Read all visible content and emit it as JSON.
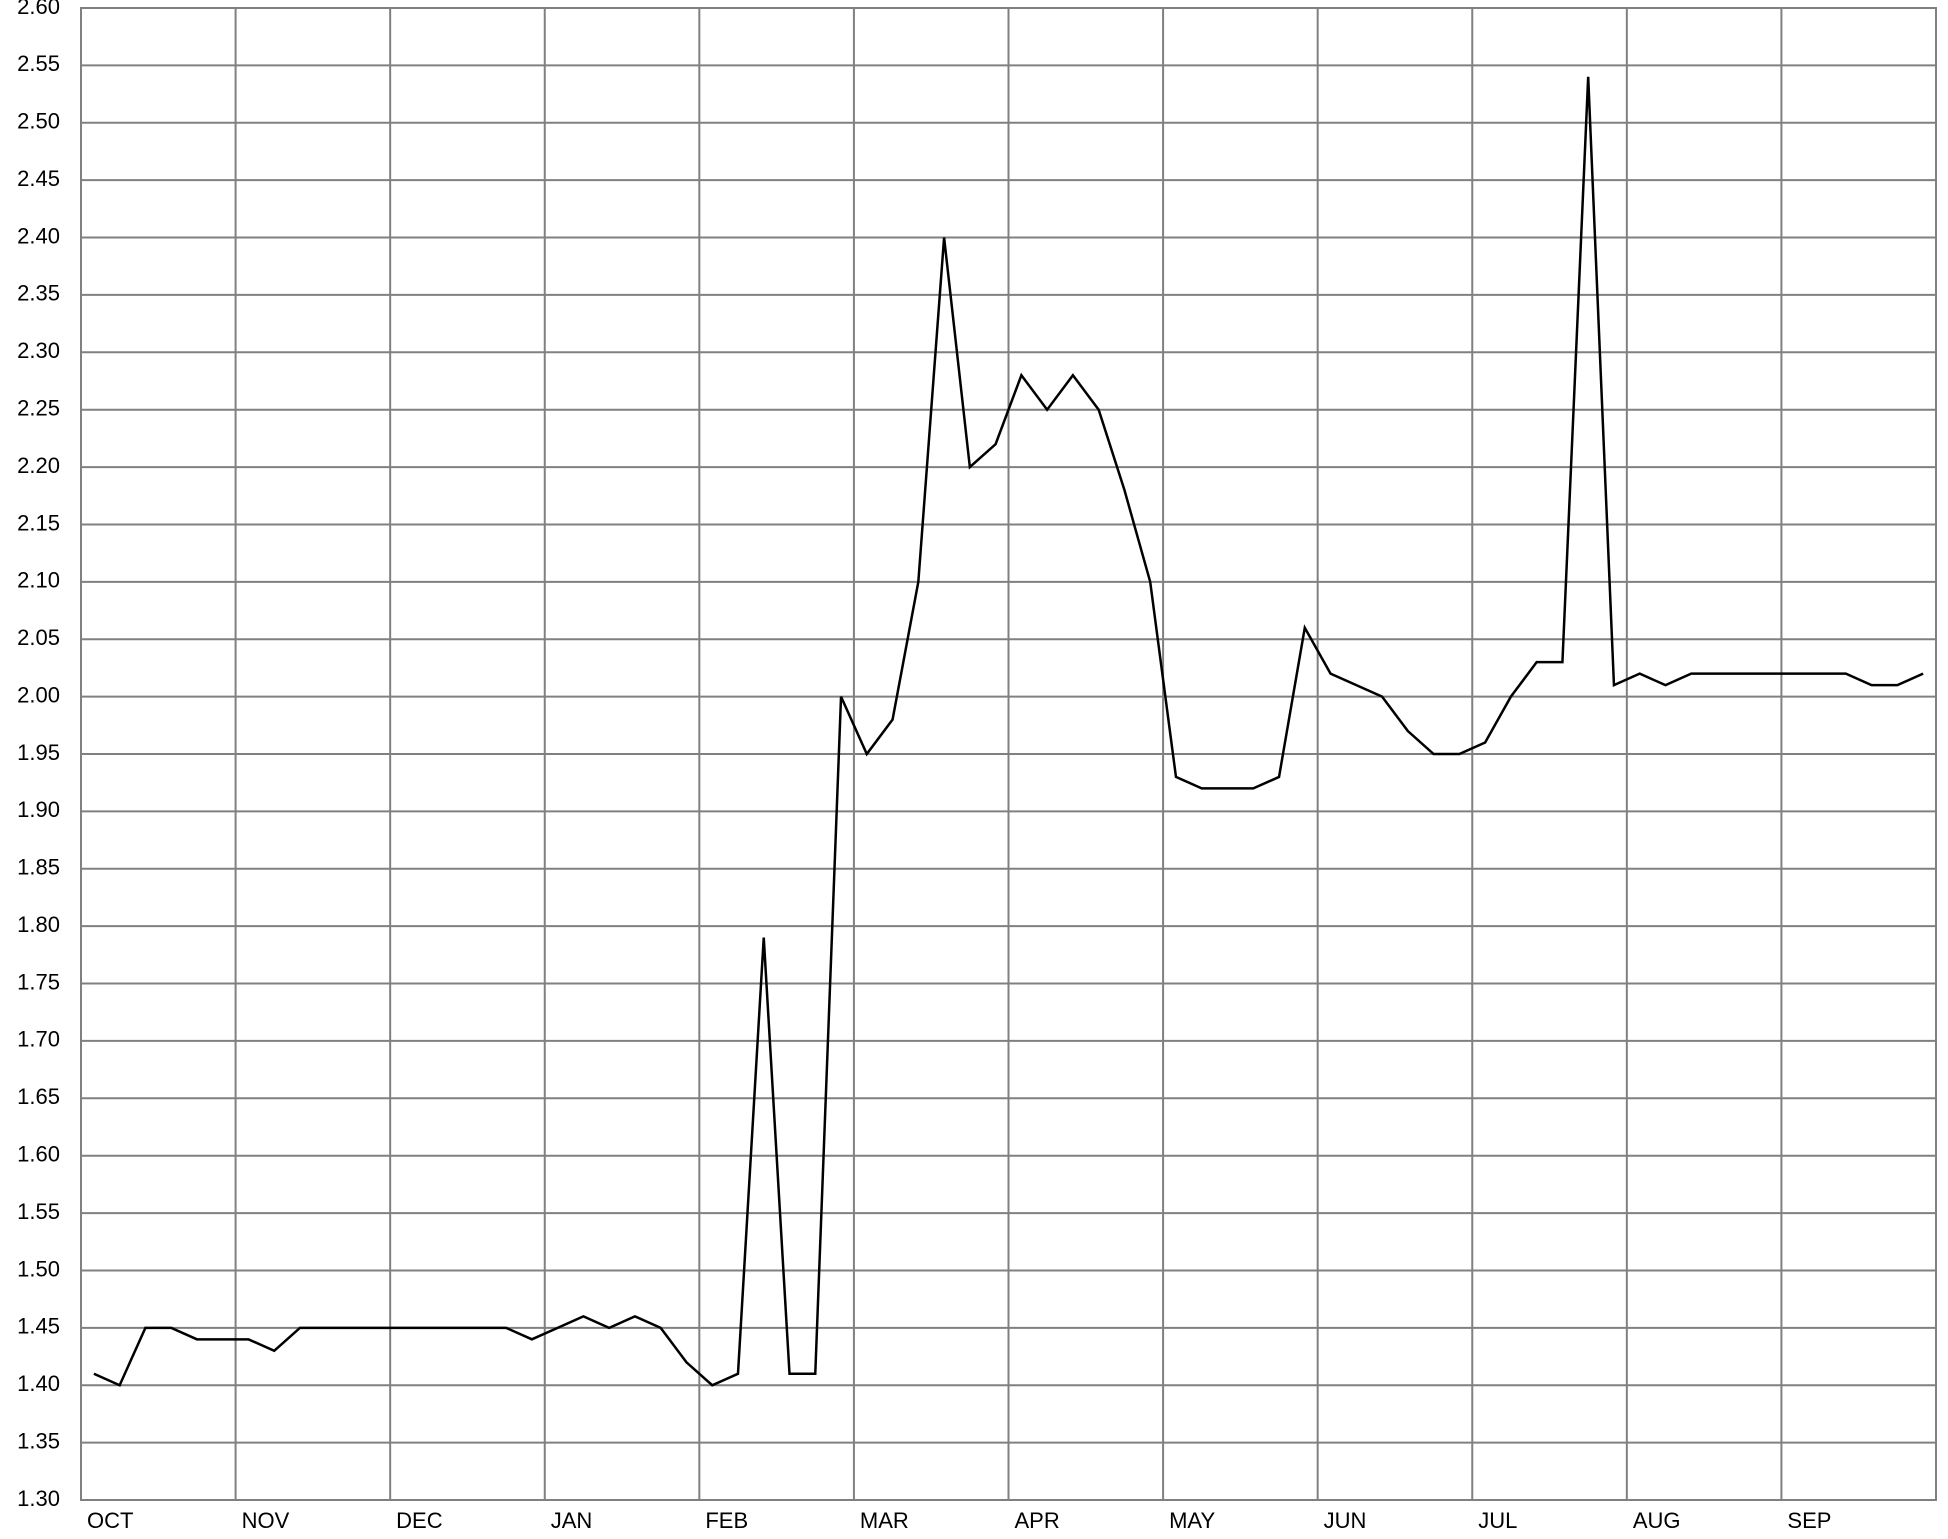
{
  "chart_data": {
    "type": "line",
    "categories": [
      "OCT",
      null,
      null,
      null,
      null,
      null,
      "NOV",
      null,
      null,
      null,
      null,
      null,
      "DEC",
      null,
      null,
      null,
      null,
      null,
      "JAN",
      null,
      null,
      null,
      null,
      null,
      "FEB",
      null,
      null,
      null,
      null,
      null,
      "MAR",
      null,
      null,
      null,
      null,
      null,
      "APR",
      null,
      null,
      null,
      null,
      null,
      "MAY",
      null,
      null,
      null,
      null,
      null,
      "JUN",
      null,
      null,
      null,
      null,
      null,
      "JUL",
      null,
      null,
      null,
      null,
      null,
      "AUG",
      null,
      null,
      null,
      null,
      null,
      "SEP",
      null,
      null,
      null,
      null,
      null
    ],
    "values": [
      1.41,
      1.4,
      1.45,
      1.45,
      1.44,
      1.44,
      1.44,
      1.43,
      1.45,
      1.45,
      1.45,
      1.45,
      1.45,
      1.45,
      1.45,
      1.45,
      1.45,
      1.44,
      1.45,
      1.46,
      1.45,
      1.46,
      1.45,
      1.42,
      1.4,
      1.41,
      1.79,
      1.41,
      1.41,
      2.0,
      1.95,
      1.98,
      2.1,
      2.4,
      2.2,
      2.22,
      2.28,
      2.25,
      2.28,
      2.25,
      2.18,
      2.1,
      1.93,
      1.92,
      1.92,
      1.92,
      1.93,
      2.06,
      2.02,
      2.01,
      2.0,
      1.97,
      1.95,
      1.95,
      1.96,
      2.0,
      2.03,
      2.03,
      2.54,
      2.01,
      2.02,
      2.01,
      2.02,
      2.02,
      2.02,
      2.02,
      2.02,
      2.02,
      2.02,
      2.01,
      2.01,
      2.02
    ],
    "color": "#000000",
    "ylim": [
      1.3,
      2.6
    ],
    "yticks": [
      {
        "value": 1.3,
        "label": "1.30"
      },
      {
        "value": 1.35,
        "label": "1.35"
      },
      {
        "value": 1.4,
        "label": "1.40"
      },
      {
        "value": 1.45,
        "label": "1.45"
      },
      {
        "value": 1.5,
        "label": "1.50"
      },
      {
        "value": 1.55,
        "label": "1.55"
      },
      {
        "value": 1.6,
        "label": "1.60"
      },
      {
        "value": 1.65,
        "label": "1.65"
      },
      {
        "value": 1.7,
        "label": "1.70"
      },
      {
        "value": 1.75,
        "label": "1.75"
      },
      {
        "value": 1.8,
        "label": "1.80"
      },
      {
        "value": 1.85,
        "label": "1.85"
      },
      {
        "value": 1.9,
        "label": "1.90"
      },
      {
        "value": 1.95,
        "label": "1.95"
      },
      {
        "value": 2.0,
        "label": "2.00"
      },
      {
        "value": 2.05,
        "label": "2.05"
      },
      {
        "value": 2.1,
        "label": "2.10"
      },
      {
        "value": 2.15,
        "label": "2.15"
      },
      {
        "value": 2.2,
        "label": "2.20"
      },
      {
        "value": 2.25,
        "label": "2.25"
      },
      {
        "value": 2.3,
        "label": "2.30"
      },
      {
        "value": 2.35,
        "label": "2.35"
      },
      {
        "value": 2.4,
        "label": "2.40"
      },
      {
        "value": 2.45,
        "label": "2.45"
      },
      {
        "value": 2.5,
        "label": "2.50"
      },
      {
        "value": 2.55,
        "label": "2.55"
      },
      {
        "value": 2.6,
        "label": "2.60"
      }
    ],
    "grid": true
  }
}
